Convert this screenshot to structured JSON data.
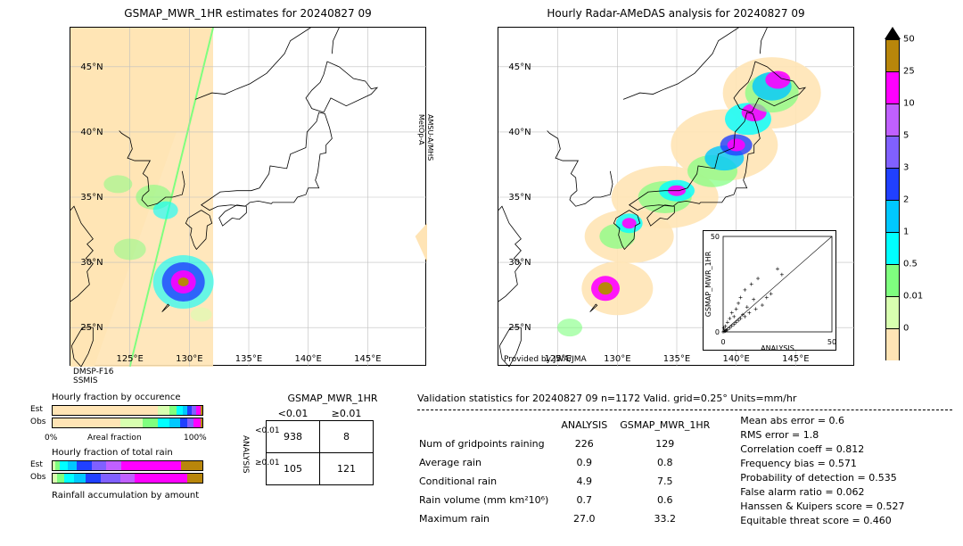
{
  "titles": {
    "left": "GSMAP_MWR_1HR estimates for 20240827 09",
    "right": "Hourly Radar-AMeDAS analysis for 20240827 09"
  },
  "map": {
    "lon_ticks": [
      "125°E",
      "130°E",
      "135°E",
      "140°E",
      "145°E"
    ],
    "lat_ticks": [
      "25°N",
      "30°N",
      "35°N",
      "40°N",
      "45°N"
    ],
    "lon_range": [
      120,
      150
    ],
    "lat_range": [
      22,
      48
    ],
    "left_footer1": "DMSP-F16",
    "left_footer2": "SSMIS",
    "left_sidelabel1": "MetOp-A",
    "left_sidelabel2": "AMSU-A/MHS",
    "right_footer": "Provided by JWA/JMA",
    "grid_color": "#bfbfbf"
  },
  "colorbar": {
    "ticks": [
      "50",
      "25",
      "10",
      "5",
      "3",
      "2",
      "1",
      "0.5",
      "0.01",
      "0"
    ],
    "colors": [
      "#b8860b",
      "#ff00ff",
      "#c060ff",
      "#8060ff",
      "#2040ff",
      "#00c8ff",
      "#00ffff",
      "#7fff7f",
      "#d8ffb0",
      "#ffe4b5"
    ],
    "arrow_color": "#000000"
  },
  "hourly_fraction": {
    "caption1": "Hourly fraction by occurence",
    "caption2": "Hourly fraction of total rain",
    "caption3": "Rainfall accumulation by amount",
    "axis_left": "0%",
    "axis_caption": "Areal fraction",
    "axis_right": "100%",
    "row_labels": [
      "Est",
      "Obs"
    ],
    "occurrence_est": [
      {
        "c": "#ffe4b5",
        "w": 0.7
      },
      {
        "c": "#d8ffb0",
        "w": 0.08
      },
      {
        "c": "#7fff7f",
        "w": 0.05
      },
      {
        "c": "#00ffff",
        "w": 0.04
      },
      {
        "c": "#00c8ff",
        "w": 0.03
      },
      {
        "c": "#2040ff",
        "w": 0.03
      },
      {
        "c": "#8060ff",
        "w": 0.03
      },
      {
        "c": "#ff00ff",
        "w": 0.03
      },
      {
        "c": "#b8860b",
        "w": 0.01
      }
    ],
    "occurrence_obs": [
      {
        "c": "#ffe4b5",
        "w": 0.45
      },
      {
        "c": "#d8ffb0",
        "w": 0.15
      },
      {
        "c": "#7fff7f",
        "w": 0.1
      },
      {
        "c": "#00ffff",
        "w": 0.08
      },
      {
        "c": "#00c8ff",
        "w": 0.07
      },
      {
        "c": "#2040ff",
        "w": 0.05
      },
      {
        "c": "#8060ff",
        "w": 0.04
      },
      {
        "c": "#ff00ff",
        "w": 0.05
      },
      {
        "c": "#b8860b",
        "w": 0.01
      }
    ],
    "total_est": [
      {
        "c": "#d8ffb0",
        "w": 0.02
      },
      {
        "c": "#7fff7f",
        "w": 0.03
      },
      {
        "c": "#00ffff",
        "w": 0.05
      },
      {
        "c": "#00c8ff",
        "w": 0.06
      },
      {
        "c": "#2040ff",
        "w": 0.1
      },
      {
        "c": "#8060ff",
        "w": 0.1
      },
      {
        "c": "#c060ff",
        "w": 0.1
      },
      {
        "c": "#ff00ff",
        "w": 0.4
      },
      {
        "c": "#b8860b",
        "w": 0.14
      }
    ],
    "total_obs": [
      {
        "c": "#d8ffb0",
        "w": 0.03
      },
      {
        "c": "#7fff7f",
        "w": 0.05
      },
      {
        "c": "#00ffff",
        "w": 0.06
      },
      {
        "c": "#00c8ff",
        "w": 0.08
      },
      {
        "c": "#2040ff",
        "w": 0.1
      },
      {
        "c": "#8060ff",
        "w": 0.13
      },
      {
        "c": "#c060ff",
        "w": 0.1
      },
      {
        "c": "#ff00ff",
        "w": 0.35
      },
      {
        "c": "#b8860b",
        "w": 0.1
      }
    ]
  },
  "contingency": {
    "col_header": "GSMAP_MWR_1HR",
    "col1": "<0.01",
    "col2": "≥0.01",
    "row_header": "ANALYSIS",
    "cells": [
      [
        "938",
        "8"
      ],
      [
        "105",
        "121"
      ]
    ]
  },
  "validation": {
    "header": "Validation statistics for 20240827 09  n=1172 Valid. grid=0.25° Units=mm/hr",
    "col1": "ANALYSIS",
    "col2": "GSMAP_MWR_1HR",
    "rows": [
      {
        "label": "Num of gridpoints raining",
        "a": "226",
        "b": "129"
      },
      {
        "label": "Average rain",
        "a": "0.9",
        "b": "0.8"
      },
      {
        "label": "Conditional rain",
        "a": "4.9",
        "b": "7.5"
      },
      {
        "label": "Rain volume (mm km²10⁶)",
        "a": "0.7",
        "b": "0.6"
      },
      {
        "label": "Maximum rain",
        "a": "27.0",
        "b": "33.2"
      }
    ],
    "metrics": [
      "Mean abs error =    0.6",
      "RMS error =    1.8",
      "Correlation coeff =  0.812",
      "Frequency bias =  0.571",
      "Probability of detection =  0.535",
      "False alarm ratio =  0.062",
      "Hanssen & Kuipers score =  0.527",
      "Equitable threat score =  0.460"
    ]
  },
  "scatter": {
    "xlabel": "ANALYSIS",
    "ylabel": "GSMAP_MWR_1HR",
    "ticks": [
      "0",
      "50"
    ],
    "points": [
      [
        0,
        0
      ],
      [
        0.5,
        0.3
      ],
      [
        1,
        0.4
      ],
      [
        0.8,
        1
      ],
      [
        1.5,
        0.8
      ],
      [
        2,
        1.2
      ],
      [
        0.3,
        2
      ],
      [
        1,
        3
      ],
      [
        3,
        2
      ],
      [
        2,
        5
      ],
      [
        4,
        3
      ],
      [
        5,
        4
      ],
      [
        3,
        7
      ],
      [
        6,
        5
      ],
      [
        5,
        8
      ],
      [
        7,
        6
      ],
      [
        4,
        10
      ],
      [
        8,
        7
      ],
      [
        6,
        12
      ],
      [
        9,
        9
      ],
      [
        10,
        8
      ],
      [
        7,
        15
      ],
      [
        12,
        10
      ],
      [
        8,
        18
      ],
      [
        11,
        13
      ],
      [
        15,
        12
      ],
      [
        10,
        22
      ],
      [
        14,
        17
      ],
      [
        18,
        14
      ],
      [
        13,
        25
      ],
      [
        20,
        18
      ],
      [
        16,
        28
      ],
      [
        22,
        20
      ],
      [
        27,
        30
      ],
      [
        25,
        33
      ]
    ]
  }
}
